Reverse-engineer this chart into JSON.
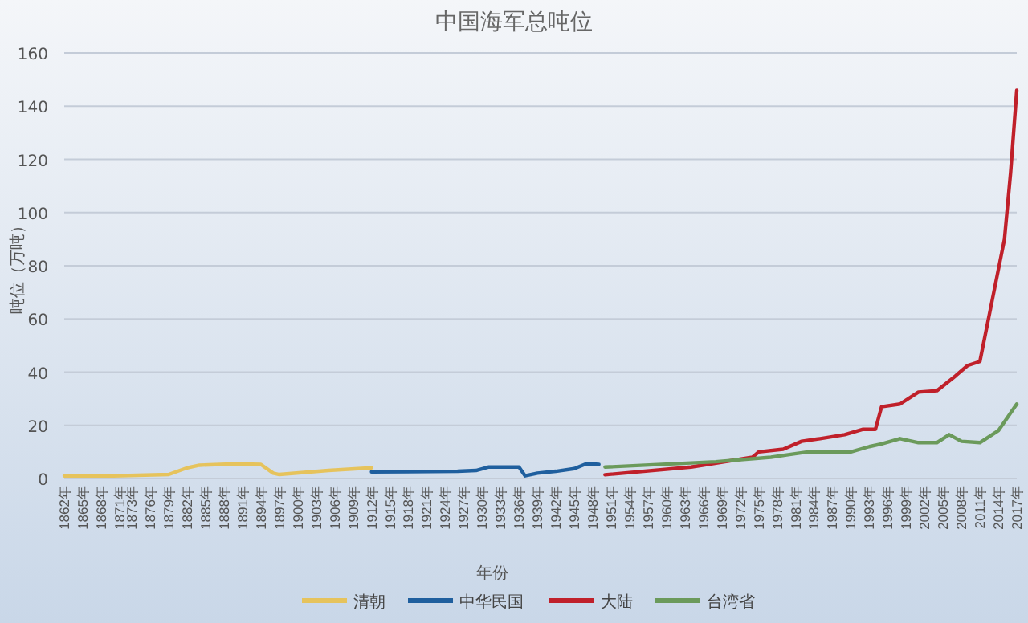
{
  "chart_data": {
    "type": "line",
    "title": "中国海军总吨位",
    "xlabel": "年份",
    "ylabel": "吨位（万吨）",
    "xlim": [
      1862,
      2017
    ],
    "xticks": [
      {
        "value": 1862,
        "label": "1862年"
      },
      {
        "value": 1865,
        "label": "1865年"
      },
      {
        "value": 1868,
        "label": "1868年"
      },
      {
        "value": 1871,
        "label": "1871年"
      },
      {
        "value": 1873,
        "label": "1873年"
      },
      {
        "value": 1876,
        "label": "1876年"
      },
      {
        "value": 1879,
        "label": "1879年"
      },
      {
        "value": 1882,
        "label": "1882年"
      },
      {
        "value": 1885,
        "label": "1885年"
      },
      {
        "value": 1888,
        "label": "1888年"
      },
      {
        "value": 1891,
        "label": "1891年"
      },
      {
        "value": 1894,
        "label": "1894年"
      },
      {
        "value": 1897,
        "label": "1897年"
      },
      {
        "value": 1900,
        "label": "1900年"
      },
      {
        "value": 1903,
        "label": "1903年"
      },
      {
        "value": 1906,
        "label": "1906年"
      },
      {
        "value": 1909,
        "label": "1909年"
      },
      {
        "value": 1912,
        "label": "1912年"
      },
      {
        "value": 1915,
        "label": "1915年"
      },
      {
        "value": 1918,
        "label": "1918年"
      },
      {
        "value": 1921,
        "label": "1921年"
      },
      {
        "value": 1924,
        "label": "1924年"
      },
      {
        "value": 1927,
        "label": "1927年"
      },
      {
        "value": 1930,
        "label": "1930年"
      },
      {
        "value": 1933,
        "label": "1933年"
      },
      {
        "value": 1936,
        "label": "1936年"
      },
      {
        "value": 1939,
        "label": "1939年"
      },
      {
        "value": 1942,
        "label": "1942年"
      },
      {
        "value": 1945,
        "label": "1945年"
      },
      {
        "value": 1948,
        "label": "1948年"
      },
      {
        "value": 1951,
        "label": "1951年"
      },
      {
        "value": 1954,
        "label": "1954年"
      },
      {
        "value": 1957,
        "label": "1957年"
      },
      {
        "value": 1960,
        "label": "1960年"
      },
      {
        "value": 1963,
        "label": "1963年"
      },
      {
        "value": 1966,
        "label": "1966年"
      },
      {
        "value": 1969,
        "label": "1969年"
      },
      {
        "value": 1972,
        "label": "1972年"
      },
      {
        "value": 1975,
        "label": "1975年"
      },
      {
        "value": 1978,
        "label": "1978年"
      },
      {
        "value": 1981,
        "label": "1981年"
      },
      {
        "value": 1984,
        "label": "1984年"
      },
      {
        "value": 1987,
        "label": "1987年"
      },
      {
        "value": 1990,
        "label": "1990年"
      },
      {
        "value": 1993,
        "label": "1993年"
      },
      {
        "value": 1996,
        "label": "1996年"
      },
      {
        "value": 1999,
        "label": "1999年"
      },
      {
        "value": 2002,
        "label": "2002年"
      },
      {
        "value": 2005,
        "label": "2005年"
      },
      {
        "value": 2008,
        "label": "2008年"
      },
      {
        "value": 2011,
        "label": "2011年"
      },
      {
        "value": 2014,
        "label": "2014年"
      },
      {
        "value": 2017,
        "label": "2017年"
      }
    ],
    "ylim": [
      0,
      160
    ],
    "yticks": [
      0,
      20,
      40,
      60,
      80,
      100,
      120,
      140,
      160
    ],
    "grid": "y",
    "legend": "bottom",
    "series": [
      {
        "name": "清朝",
        "color": "#e6c35c",
        "x": [
          1862,
          1870,
          1879,
          1882,
          1884,
          1890,
          1894,
          1896,
          1897,
          1905,
          1912
        ],
        "values": [
          1,
          1,
          1.5,
          4,
          5,
          5.5,
          5.3,
          2,
          1.5,
          3,
          4
        ]
      },
      {
        "name": "中华民国",
        "color": "#1f5f9e",
        "x": [
          1912,
          1926,
          1929,
          1931,
          1936,
          1937,
          1939,
          1942,
          1945,
          1947,
          1949
        ],
        "values": [
          2.5,
          2.7,
          3,
          4.3,
          4.3,
          1,
          2,
          2.7,
          3.7,
          5.6,
          5.3
        ]
      },
      {
        "name": "大陆",
        "color": "#c0202a",
        "x": [
          1950,
          1964,
          1974,
          1975,
          1979,
          1982,
          1985,
          1989,
          1992,
          1994,
          1995,
          1998,
          2001,
          2004,
          2007,
          2009,
          2011,
          2013,
          2015,
          2016,
          2017
        ],
        "values": [
          1.4,
          4.3,
          8,
          10,
          11,
          14,
          15,
          16.5,
          18.5,
          18.5,
          27,
          28,
          32.5,
          33,
          38.5,
          42.5,
          44,
          67,
          90,
          115,
          146
        ]
      },
      {
        "name": "台湾省",
        "color": "#6b9a5b",
        "x": [
          1950,
          1968,
          1977,
          1980,
          1983,
          1990,
          1993,
          1995,
          1998,
          2001,
          2004,
          2006,
          2008,
          2011,
          2014,
          2017
        ],
        "values": [
          4.3,
          6.3,
          8,
          9,
          10,
          10,
          12,
          13,
          15,
          13.5,
          13.5,
          16.5,
          14,
          13.5,
          18,
          28
        ]
      }
    ]
  }
}
